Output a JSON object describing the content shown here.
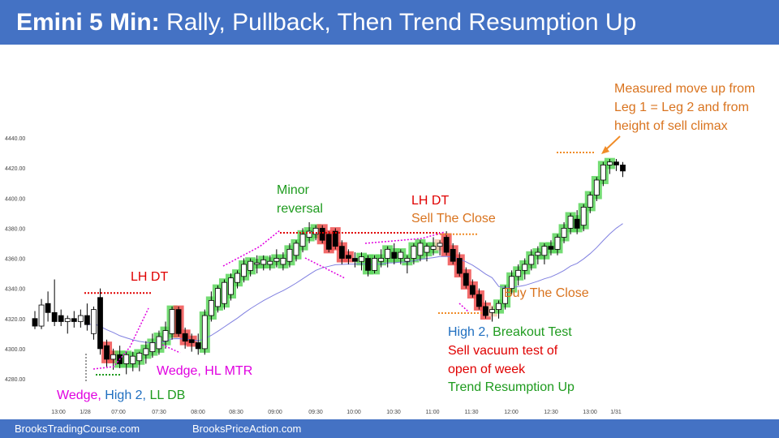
{
  "header": {
    "title_bold": "Emini 5 Min:",
    "title_rest": " Rally, Pullback, Then Trend Resumption Up",
    "bg_color": "#4472c4"
  },
  "footer": {
    "left": "BrooksTradingCourse.com",
    "right": "BrooksPriceAction.com"
  },
  "annotations": {
    "measured_move": [
      "Measured move up from",
      "Leg 1 = Leg 2 and from",
      "height of sell climax"
    ],
    "minor_reversal": [
      "Minor",
      "reversal"
    ],
    "lh_dt_right": "LH DT",
    "sell_the_close": "Sell The Close",
    "lh_dt_left": "LH DT",
    "buy_the_close": "Buy The Close",
    "wedge_hl_mtr": "Wedge, HL MTR",
    "wedge_bottom": {
      "part1": "Wedge,",
      "part2": " High 2,",
      "part3": " LL DB"
    },
    "high2_breakout": {
      "part1": "High 2,",
      "part2": " Breakout Test"
    },
    "sell_vacuum": [
      "Sell vacuum test of",
      "open of week"
    ],
    "trend_resumption": "Trend Resumption Up"
  },
  "chart_data": {
    "type": "candlestick",
    "y_ticks": [
      "4440.00",
      "4420.00",
      "4400.00",
      "4380.00",
      "4360.00",
      "4340.00",
      "4320.00",
      "4300.00",
      "4280.00"
    ],
    "ylim": [
      4275,
      4445
    ],
    "x_ticks": [
      "13:00",
      "1/28",
      "07:00",
      "07:30",
      "08:00",
      "08:30",
      "09:00",
      "09:30",
      "10:00",
      "10:30",
      "11:00",
      "11:30",
      "12:00",
      "12:30",
      "13:00",
      "1/31"
    ],
    "colors": {
      "bull_body": "#ffffff",
      "bear_body": "#000000",
      "green_highlight": "#5cd65c",
      "red_highlight": "#f05050",
      "ema": "#8080e0",
      "red_line": "#e00000",
      "orange_line": "#f08c28",
      "magenta_line": "#e000e0"
    },
    "candles": [
      [
        4320,
        4325,
        4313,
        4315
      ],
      [
        4315,
        4333,
        4313,
        4329
      ],
      [
        4330,
        4338,
        4318,
        4324
      ],
      [
        4324,
        4346,
        4315,
        4318
      ],
      [
        4322,
        4326,
        4315,
        4318
      ],
      [
        4318,
        4322,
        4310,
        4320
      ],
      [
        4320,
        4325,
        4314,
        4318
      ],
      [
        4318,
        4326,
        4314,
        4322
      ],
      [
        4322,
        4330,
        4312,
        4316
      ],
      [
        4310,
        4328,
        4306,
        4326
      ],
      [
        4334,
        4340,
        4296,
        4300
      ],
      [
        4302,
        4306,
        4288,
        4293
      ],
      [
        4293,
        4300,
        4286,
        4296
      ],
      [
        4296,
        4302,
        4287,
        4290
      ],
      [
        4290,
        4298,
        4283,
        4296
      ],
      [
        4290,
        4298,
        4285,
        4295
      ],
      [
        4292,
        4298,
        4285,
        4297
      ],
      [
        4296,
        4305,
        4290,
        4300
      ],
      [
        4298,
        4310,
        4294,
        4304
      ],
      [
        4300,
        4312,
        4296,
        4308
      ],
      [
        4305,
        4318,
        4300,
        4312
      ],
      [
        4310,
        4328,
        4306,
        4326
      ],
      [
        4326,
        4328,
        4308,
        4310
      ],
      [
        4310,
        4314,
        4300,
        4305
      ],
      [
        4306,
        4310,
        4298,
        4304
      ],
      [
        4304,
        4310,
        4296,
        4300
      ],
      [
        4300,
        4326,
        4296,
        4322
      ],
      [
        4322,
        4338,
        4318,
        4332
      ],
      [
        4328,
        4342,
        4324,
        4340
      ],
      [
        4330,
        4346,
        4326,
        4344
      ],
      [
        4336,
        4350,
        4332,
        4347
      ],
      [
        4344,
        4352,
        4340,
        4350
      ],
      [
        4348,
        4360,
        4344,
        4356
      ],
      [
        4352,
        4360,
        4348,
        4358
      ],
      [
        4356,
        4362,
        4350,
        4357
      ],
      [
        4356,
        4362,
        4352,
        4359
      ],
      [
        4356,
        4362,
        4352,
        4358
      ],
      [
        4358,
        4366,
        4354,
        4360
      ],
      [
        4356,
        4364,
        4352,
        4360
      ],
      [
        4358,
        4370,
        4354,
        4366
      ],
      [
        4362,
        4372,
        4358,
        4370
      ],
      [
        4368,
        4380,
        4364,
        4376
      ],
      [
        4374,
        4384,
        4370,
        4378
      ],
      [
        4376,
        4382,
        4372,
        4380
      ],
      [
        4380,
        4382,
        4370,
        4372
      ],
      [
        4376,
        4378,
        4364,
        4366
      ],
      [
        4378,
        4380,
        4366,
        4368
      ],
      [
        4368,
        4372,
        4356,
        4360
      ],
      [
        4362,
        4366,
        4356,
        4360
      ],
      [
        4360,
        4364,
        4354,
        4358
      ],
      [
        4358,
        4364,
        4352,
        4361
      ],
      [
        4360,
        4362,
        4348,
        4352
      ],
      [
        4352,
        4362,
        4350,
        4360
      ],
      [
        4358,
        4366,
        4354,
        4360
      ],
      [
        4360,
        4368,
        4354,
        4366
      ],
      [
        4364,
        4370,
        4356,
        4360
      ],
      [
        4360,
        4366,
        4356,
        4364
      ],
      [
        4358,
        4362,
        4350,
        4360
      ],
      [
        4360,
        4370,
        4356,
        4368
      ],
      [
        4362,
        4372,
        4358,
        4370
      ],
      [
        4364,
        4370,
        4358,
        4368
      ],
      [
        4366,
        4374,
        4362,
        4368
      ],
      [
        4368,
        4372,
        4362,
        4370
      ],
      [
        4374,
        4378,
        4362,
        4364
      ],
      [
        4366,
        4370,
        4356,
        4358
      ],
      [
        4360,
        4364,
        4348,
        4350
      ],
      [
        4350,
        4354,
        4340,
        4342
      ],
      [
        4342,
        4346,
        4334,
        4336
      ],
      [
        4336,
        4340,
        4326,
        4328
      ],
      [
        4328,
        4332,
        4320,
        4322
      ],
      [
        4324,
        4328,
        4318,
        4326
      ],
      [
        4326,
        4332,
        4320,
        4330
      ],
      [
        4330,
        4342,
        4326,
        4340
      ],
      [
        4340,
        4352,
        4336,
        4348
      ],
      [
        4348,
        4356,
        4342,
        4352
      ],
      [
        4352,
        4360,
        4346,
        4356
      ],
      [
        4356,
        4366,
        4352,
        4362
      ],
      [
        4362,
        4368,
        4356,
        4364
      ],
      [
        4362,
        4370,
        4356,
        4368
      ],
      [
        4368,
        4372,
        4362,
        4366
      ],
      [
        4366,
        4376,
        4362,
        4374
      ],
      [
        4374,
        4384,
        4370,
        4380
      ],
      [
        4380,
        4390,
        4376,
        4388
      ],
      [
        4386,
        4392,
        4376,
        4380
      ],
      [
        4382,
        4396,
        4378,
        4394
      ],
      [
        4394,
        4404,
        4390,
        4402
      ],
      [
        4402,
        4414,
        4398,
        4412
      ],
      [
        4412,
        4424,
        4408,
        4422
      ],
      [
        4422,
        4426,
        4416,
        4424
      ],
      [
        4424,
        4426,
        4418,
        4422
      ],
      [
        4422,
        4424,
        4414,
        4418
      ]
    ],
    "green_bars": [
      13,
      14,
      15,
      16,
      17,
      18,
      19,
      20,
      21,
      26,
      27,
      28,
      29,
      30,
      31,
      32,
      33,
      34,
      35,
      36,
      37,
      38,
      39,
      40,
      41,
      42,
      43,
      50,
      51,
      52,
      53,
      54,
      55,
      56,
      57,
      58,
      59,
      60,
      61,
      62,
      71,
      72,
      73,
      74,
      75,
      76,
      77,
      78,
      79,
      80,
      81,
      82,
      83,
      84,
      85,
      86,
      87,
      88
    ],
    "red_bars": [
      11,
      12,
      22,
      23,
      24,
      44,
      45,
      46,
      47,
      48,
      63,
      64,
      65,
      66,
      67,
      68,
      69
    ],
    "light_bars": [
      62,
      70
    ]
  }
}
